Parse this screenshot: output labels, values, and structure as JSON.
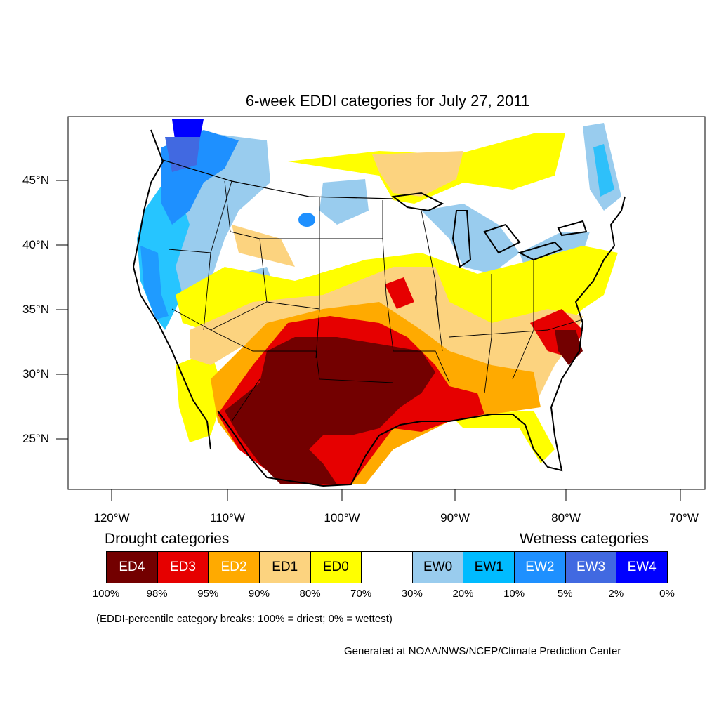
{
  "map": {
    "title": "6-week EDDI categories for July 27, 2011",
    "lat_labels": [
      "45°N",
      "40°N",
      "35°N",
      "30°N",
      "25°N"
    ],
    "lon_labels": [
      "120°W",
      "110°W",
      "100°W",
      "90°W",
      "80°W",
      "70°W"
    ]
  },
  "legend": {
    "drought_title": "Drought categories",
    "wetness_title": "Wetness categories",
    "categories": [
      {
        "label": "ED4",
        "color": "#730000",
        "text_color": "#ffffff"
      },
      {
        "label": "ED3",
        "color": "#e60000",
        "text_color": "#ffffff"
      },
      {
        "label": "ED2",
        "color": "#ffaa00",
        "text_color": "#ffffff"
      },
      {
        "label": "ED1",
        "color": "#fcd37f",
        "text_color": "#000000"
      },
      {
        "label": "ED0",
        "color": "#ffff00",
        "text_color": "#000000"
      },
      {
        "label": "",
        "color": "#ffffff",
        "text_color": "#000000"
      },
      {
        "label": "EW0",
        "color": "#99ccee",
        "text_color": "#000000"
      },
      {
        "label": "EW1",
        "color": "#00bbff",
        "text_color": "#000000"
      },
      {
        "label": "EW2",
        "color": "#1e90ff",
        "text_color": "#ffffff"
      },
      {
        "label": "EW3",
        "color": "#4169e1",
        "text_color": "#ffffff"
      },
      {
        "label": "EW4",
        "color": "#0000ff",
        "text_color": "#ffffff"
      }
    ],
    "breaks": [
      "100%",
      "98%",
      "95%",
      "90%",
      "80%",
      "70%",
      "30%",
      "20%",
      "10%",
      "5%",
      "2%",
      "0%"
    ],
    "note": "(EDDI-percentile category breaks: 100% = driest; 0% = wettest)"
  },
  "credit": "Generated at NOAA/NWS/NCEP/Climate Prediction Center"
}
